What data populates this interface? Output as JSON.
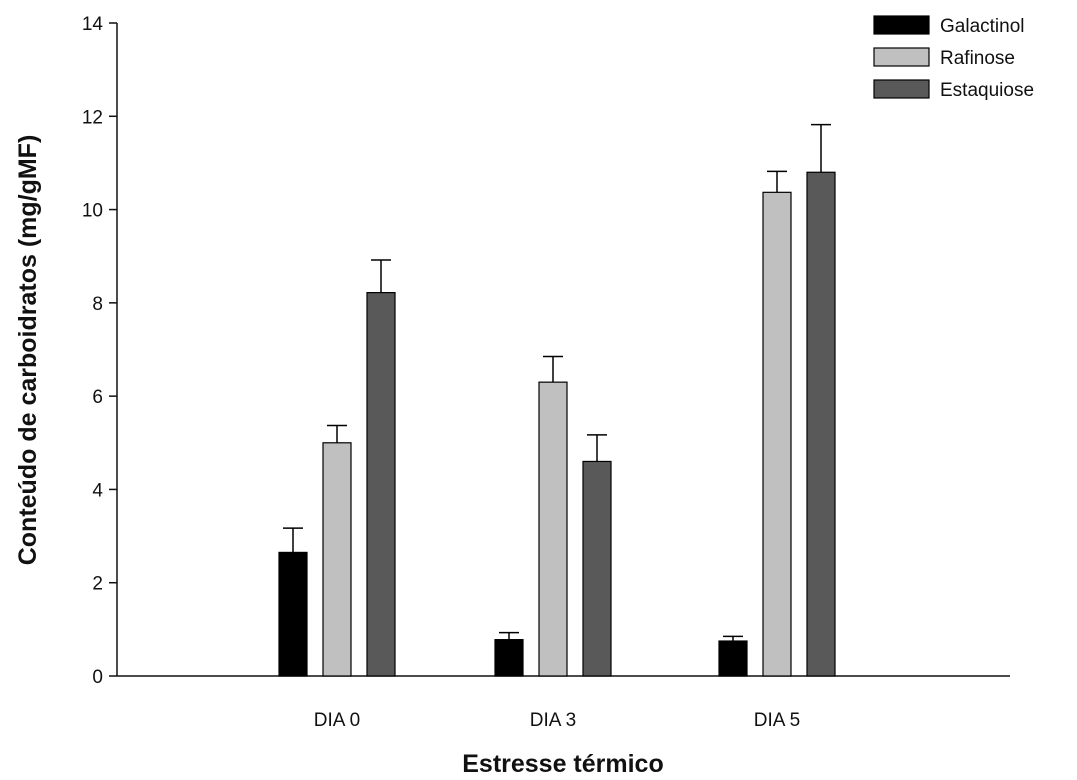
{
  "chart_data": {
    "type": "bar",
    "title": "",
    "xlabel": "Estresse térmico",
    "ylabel": "Conteúdo de carboidratos (mg/gMF)",
    "categories": [
      "DIA 0",
      "DIA 3",
      "DIA 5"
    ],
    "series": [
      {
        "name": "Galactinol",
        "color": "#000000",
        "values": [
          2.65,
          0.78,
          0.75
        ],
        "errors": [
          0.52,
          0.15,
          0.1
        ]
      },
      {
        "name": "Rafinose",
        "color": "#c0c0c0",
        "values": [
          5.0,
          6.3,
          10.37
        ],
        "errors": [
          0.37,
          0.55,
          0.45
        ]
      },
      {
        "name": "Estaquiose",
        "color": "#595959",
        "values": [
          8.22,
          4.6,
          10.8
        ],
        "errors": [
          0.7,
          0.57,
          1.02
        ]
      }
    ],
    "ylim": [
      0,
      14
    ],
    "yticks": [
      0,
      2,
      4,
      6,
      8,
      10,
      12,
      14
    ],
    "error_bars": "positive",
    "grid": false,
    "legend_position": "top-right"
  }
}
